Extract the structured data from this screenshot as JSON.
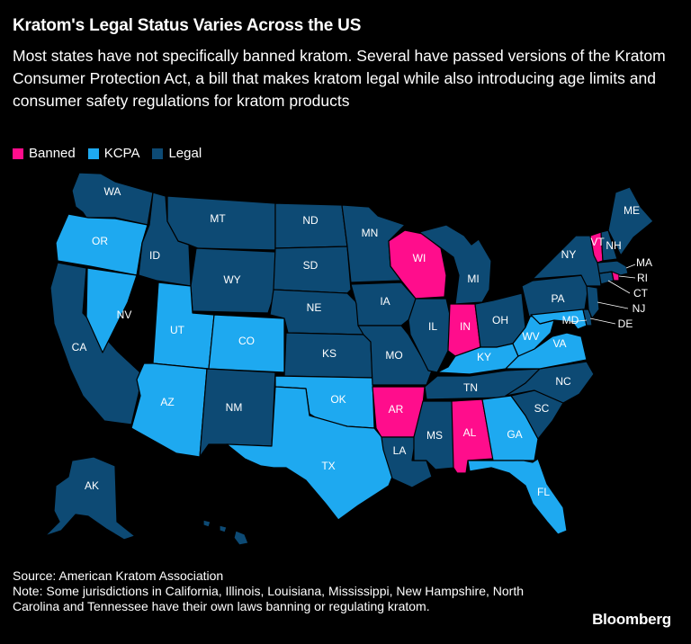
{
  "title": "Kratom's Legal Status Varies Across the US",
  "subtitle": "Most states have not specifically banned kratom. Several have passed versions of the Kratom Consumer Protection Act, a bill that makes kratom legal while also introducing age limits and consumer safety regulations for kratom products",
  "legend": [
    {
      "label": "Banned",
      "color": "#ff0d8c"
    },
    {
      "label": "KCPA",
      "color": "#1ea9f0"
    },
    {
      "label": "Legal",
      "color": "#0d4a74"
    }
  ],
  "states": {
    "WA": "Legal",
    "OR": "KCPA",
    "CA": "Legal",
    "NV": "KCPA",
    "ID": "Legal",
    "MT": "Legal",
    "WY": "Legal",
    "UT": "KCPA",
    "AZ": "KCPA",
    "CO": "KCPA",
    "NM": "Legal",
    "ND": "Legal",
    "SD": "Legal",
    "NE": "Legal",
    "KS": "Legal",
    "OK": "KCPA",
    "TX": "KCPA",
    "MN": "Legal",
    "IA": "Legal",
    "MO": "Legal",
    "AR": "Banned",
    "LA": "Legal",
    "WI": "Banned",
    "IL": "Legal",
    "MI": "Legal",
    "IN": "Banned",
    "OH": "Legal",
    "KY": "KCPA",
    "TN": "Legal",
    "MS": "Legal",
    "AL": "Banned",
    "GA": "KCPA",
    "FL": "KCPA",
    "SC": "Legal",
    "NC": "Legal",
    "VA": "KCPA",
    "WV": "KCPA",
    "MD": "KCPA",
    "DE": "Legal",
    "NJ": "Legal",
    "PA": "Legal",
    "NY": "Legal",
    "CT": "Legal",
    "RI": "Banned",
    "MA": "Legal",
    "VT": "Banned",
    "NH": "Legal",
    "ME": "Legal",
    "AK": "Legal",
    "HI": "Legal"
  },
  "footer": {
    "source": "Source: American Kratom Association",
    "note": "Note: Some jurisdictions in California, Illinois, Louisiana, Mississippi, New Hampshire, North Carolina and Tennessee have their own laws banning or regulating kratom."
  },
  "brand": "Bloomberg"
}
